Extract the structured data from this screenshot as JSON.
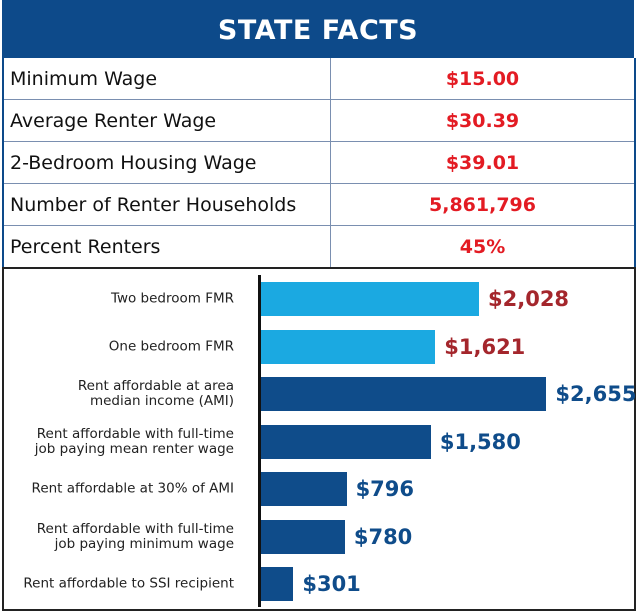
{
  "table": {
    "title": "STATE FACTS",
    "rows": [
      [
        "Minimum Wage",
        "$15.00"
      ],
      [
        "Average Renter Wage",
        "$30.39"
      ],
      [
        "2-Bedroom Housing Wage",
        "$39.01"
      ],
      [
        "Number of Renter Households",
        "5,861,796"
      ],
      [
        "Percent Renters",
        "45%"
      ]
    ]
  },
  "chart_data": {
    "type": "barh",
    "categories": [
      "Two bedroom FMR",
      "One bedroom FMR",
      "Rent affordable at area\nmedian income (AMI)",
      "Rent affordable with full-time\njob paying mean renter wage",
      "Rent affordable at 30% of AMI",
      "Rent affordable with full-time\njob paying minimum wage",
      "Rent affordable to SSI recipient"
    ],
    "values": [
      2028,
      1621,
      2655,
      1580,
      796,
      780,
      301
    ],
    "value_labels": [
      "$2,028",
      "$1,621",
      "$2,655",
      "$1,580",
      "$796",
      "$780",
      "$301"
    ],
    "colors": [
      "#1ba9e1",
      "#1ba9e1",
      "#0f4c8a",
      "#0f4c8a",
      "#0f4c8a",
      "#0f4c8a",
      "#0f4c8a"
    ],
    "label_colors": [
      "#a4262c",
      "#a4262c",
      "#0f4c8a",
      "#0f4c8a",
      "#0f4c8a",
      "#0f4c8a",
      "#0f4c8a"
    ]
  }
}
